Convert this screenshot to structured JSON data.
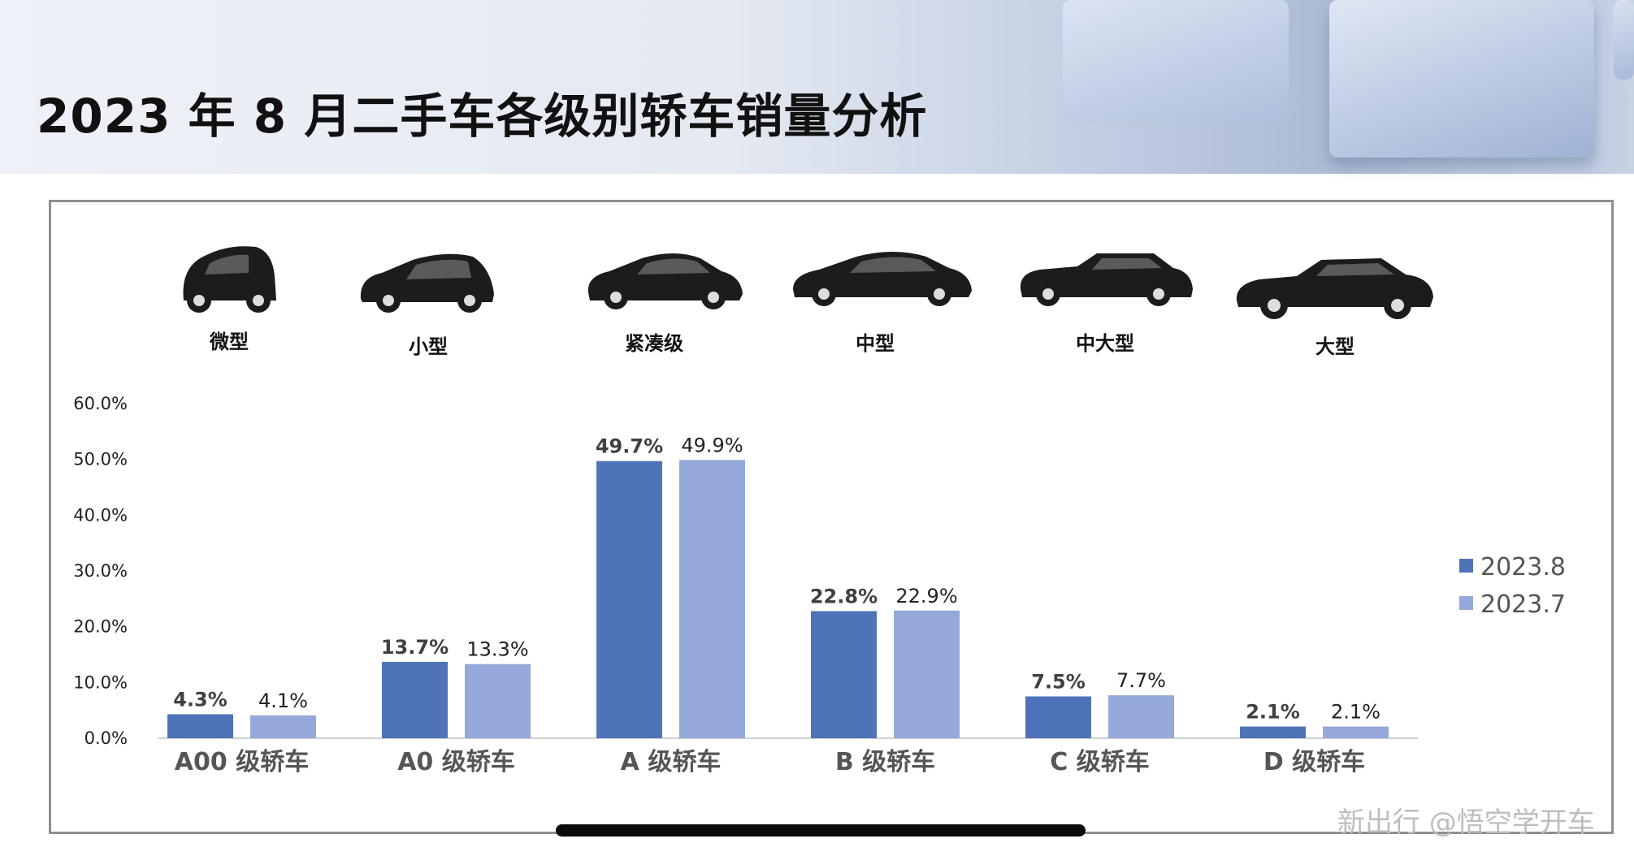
{
  "page": {
    "title": "2023 年 8 月二手车各级别轿车销量分析",
    "watermark": "新出行 @悟空学开车"
  },
  "car_types": [
    {
      "label": "微型",
      "icon": "micro-car-icon"
    },
    {
      "label": "小型",
      "icon": "hatchback-car-icon"
    },
    {
      "label": "紧凑级",
      "icon": "compact-sedan-icon"
    },
    {
      "label": "中型",
      "icon": "midsize-sedan-icon"
    },
    {
      "label": "中大型",
      "icon": "large-sedan-icon"
    },
    {
      "label": "大型",
      "icon": "full-size-sedan-icon"
    }
  ],
  "colors": {
    "series_2023_8": "#4f73b8",
    "series_2023_7": "#94a9d9",
    "axis": "#d0d0d0",
    "label_dark": "#404040",
    "label_plain": "#222222"
  },
  "chart_data": {
    "type": "bar",
    "categories": [
      "A00 级轿车",
      "A0 级轿车",
      "A 级轿车",
      "B 级轿车",
      "C 级轿车",
      "D 级轿车"
    ],
    "series": [
      {
        "name": "2023.8",
        "values": [
          4.3,
          13.7,
          49.7,
          22.8,
          7.5,
          2.1
        ]
      },
      {
        "name": "2023.7",
        "values": [
          4.1,
          13.3,
          49.9,
          22.9,
          7.7,
          2.1
        ]
      }
    ],
    "data_labels": [
      [
        "4.3%",
        "13.7%",
        "49.7%",
        "22.8%",
        "7.5%",
        "2.1%"
      ],
      [
        "4.1%",
        "13.3%",
        "49.9%",
        "22.9%",
        "7.7%",
        "2.1%"
      ]
    ],
    "yticks": [
      "0.0%",
      "10.0%",
      "20.0%",
      "30.0%",
      "40.0%",
      "50.0%",
      "60.0%"
    ],
    "ylim": [
      0,
      60
    ],
    "legend": "right",
    "grid": false
  }
}
